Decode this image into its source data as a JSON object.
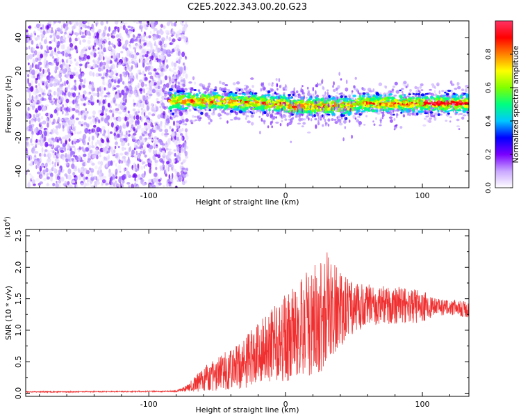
{
  "page_title": "C2E5.2022.343.00.20.G23",
  "chart_data": [
    {
      "type": "heatmap",
      "title": "C2E5.2022.343.00.20.G23",
      "xlabel": "Height of straight line (km)",
      "ylabel": "Frequency (Hz)",
      "xlim": [
        -190,
        134
      ],
      "ylim": [
        -50,
        50
      ],
      "x_ticks": [
        -100,
        0,
        100
      ],
      "y_ticks": [
        -40,
        -20,
        0,
        20,
        40
      ],
      "grid": false,
      "signal_band": {
        "x_start": -85,
        "x_end": 134,
        "center_frequency_hz": 0,
        "spread_hz": [
          -8,
          8
        ]
      },
      "noise_region": {
        "x_start": -190,
        "x_end": -72,
        "frequency_range_hz": [
          -50,
          50
        ]
      },
      "colorbar": {
        "label": "Normalized spectral amplitude",
        "range": [
          0.0,
          1.0
        ],
        "ticks": [
          0.0,
          0.2,
          0.4,
          0.6,
          0.8
        ],
        "colors": [
          "#ffffff",
          "#c9a6ff",
          "#7a00ff",
          "#0000ff",
          "#00c8ff",
          "#00ff80",
          "#80ff00",
          "#ffff00",
          "#ff8000",
          "#ff0000",
          "#ff3366"
        ]
      }
    },
    {
      "type": "line",
      "xlabel": "Height of straight line (km)",
      "ylabel": "SNR (10 * v/v)",
      "y_multiplier_label": "(x10",
      "y_multiplier_exp": "4",
      "y_multiplier_close": ")",
      "xlim": [
        -190,
        134
      ],
      "ylim": [
        -0.05,
        2.6
      ],
      "x_ticks": [
        -100,
        0,
        100
      ],
      "y_ticks": [
        "0.0",
        "0.5",
        "1.0",
        "1.5",
        "2.0",
        "2.5"
      ],
      "line_color": "#f03030",
      "grid": false,
      "envelope": {
        "x": [
          -190,
          -80,
          -72,
          -60,
          -50,
          -40,
          -30,
          -20,
          -10,
          0,
          10,
          20,
          30,
          40,
          50,
          60,
          70,
          80,
          90,
          100,
          110,
          120,
          134
        ],
        "mean": [
          0.02,
          0.03,
          0.08,
          0.22,
          0.32,
          0.38,
          0.5,
          0.62,
          0.75,
          0.88,
          1.0,
          1.15,
          1.3,
          1.32,
          1.35,
          1.38,
          1.4,
          1.4,
          1.38,
          1.38,
          1.36,
          1.36,
          1.35
        ],
        "spread": [
          0.01,
          0.01,
          0.05,
          0.2,
          0.28,
          0.32,
          0.42,
          0.5,
          0.6,
          0.7,
          0.78,
          0.9,
          0.95,
          0.6,
          0.4,
          0.35,
          0.3,
          0.3,
          0.28,
          0.25,
          0.14,
          0.12,
          0.15
        ]
      }
    }
  ]
}
